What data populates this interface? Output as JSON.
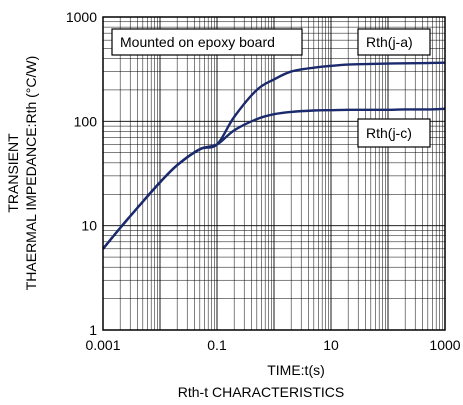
{
  "chart_data": {
    "type": "line",
    "title": "Rth-t CHARACTERISTICS",
    "xlabel": "TIME:t(s)",
    "ylabel_line1": "TRANSIENT",
    "ylabel_line2": "THAERMAL IMPEDANCE:Rth (°C/W)",
    "x_scale": "log",
    "y_scale": "log",
    "xlim": [
      0.001,
      1000
    ],
    "ylim": [
      1,
      1000
    ],
    "grid": true,
    "x_ticks": [
      {
        "value": 0.001,
        "label": "0.001"
      },
      {
        "value": 0.1,
        "label": "0.1"
      },
      {
        "value": 10,
        "label": "10"
      },
      {
        "value": 1000,
        "label": "1000"
      }
    ],
    "y_ticks": [
      {
        "value": 1,
        "label": "1"
      },
      {
        "value": 10,
        "label": "10"
      },
      {
        "value": 100,
        "label": "100"
      },
      {
        "value": 1000,
        "label": "1000"
      }
    ],
    "annotation": "Mounted on epoxy board",
    "line_color": "#1a2a6c",
    "series": [
      {
        "name": "Rth(j-a)",
        "x": [
          0.001,
          0.002,
          0.005,
          0.01,
          0.02,
          0.05,
          0.1,
          0.2,
          0.5,
          1,
          2,
          5,
          10,
          20,
          50,
          100,
          200,
          500,
          1000
        ],
        "y": [
          6,
          9.5,
          17,
          26,
          38,
          54,
          60,
          110,
          200,
          252,
          300,
          327,
          340,
          350,
          355,
          358,
          360,
          362,
          365
        ]
      },
      {
        "name": "Rth(j-c)",
        "x": [
          0.001,
          0.002,
          0.005,
          0.01,
          0.02,
          0.05,
          0.1,
          0.2,
          0.5,
          1,
          2,
          5,
          10,
          20,
          50,
          100,
          200,
          500,
          1000
        ],
        "y": [
          6,
          9.5,
          17,
          26,
          38,
          54,
          60,
          82,
          105,
          117,
          123,
          127,
          128,
          129,
          129,
          129,
          130,
          130,
          132
        ]
      }
    ]
  }
}
